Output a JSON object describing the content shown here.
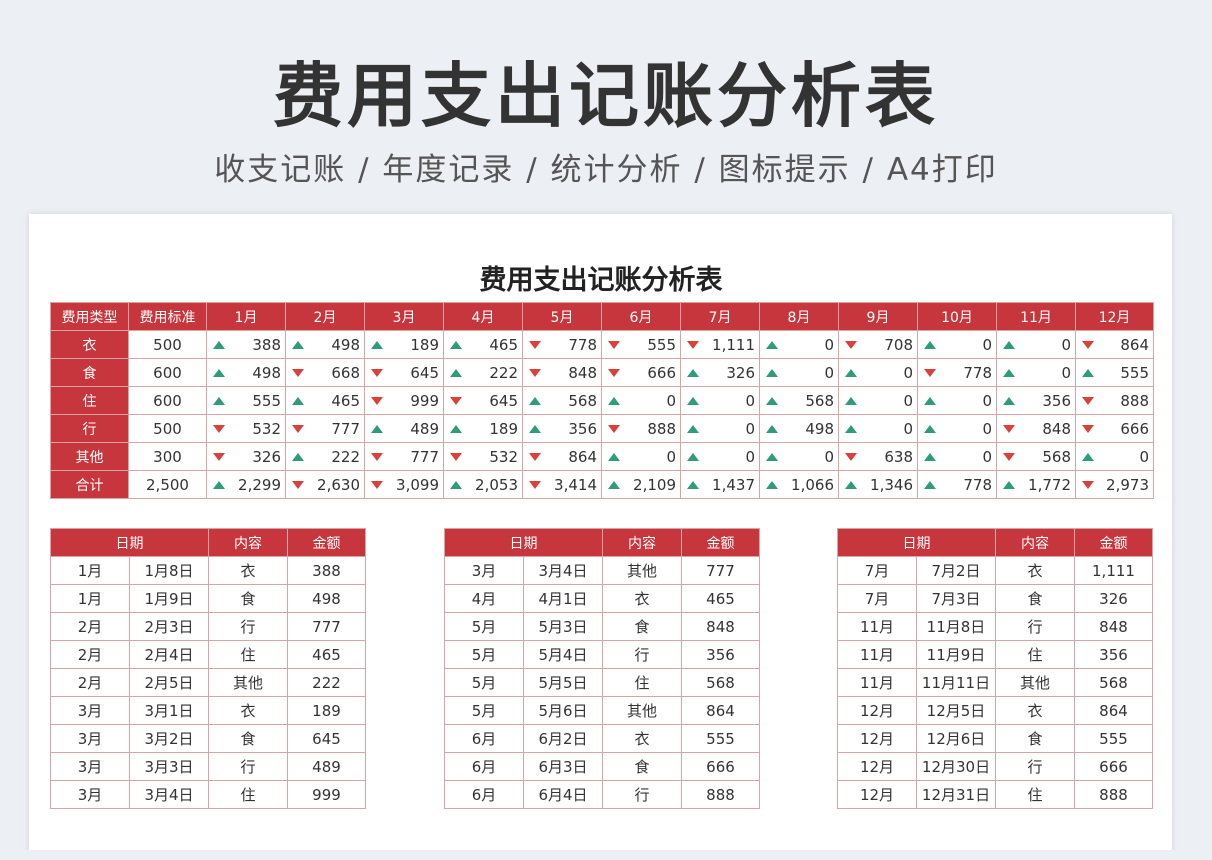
{
  "hero": {
    "title": "费用支出记账分析表",
    "subtitle": "收支记账 / 年度记录 / 统计分析 / 图标提示 / A4打印"
  },
  "sheet": {
    "title": "费用支出记账分析表",
    "summary": {
      "headers": [
        "费用类型",
        "费用标准",
        "1月",
        "2月",
        "3月",
        "4月",
        "5月",
        "6月",
        "7月",
        "8月",
        "9月",
        "10月",
        "11月",
        "12月"
      ],
      "rows": [
        {
          "type": "衣",
          "standard": "500",
          "values": [
            "388",
            "498",
            "189",
            "465",
            "778",
            "555",
            "1,111",
            "0",
            "708",
            "0",
            "0",
            "864"
          ],
          "dirs": [
            "up",
            "up",
            "up",
            "up",
            "down",
            "down",
            "down",
            "up",
            "down",
            "up",
            "up",
            "down"
          ]
        },
        {
          "type": "食",
          "standard": "600",
          "values": [
            "498",
            "668",
            "645",
            "222",
            "848",
            "666",
            "326",
            "0",
            "0",
            "778",
            "0",
            "555"
          ],
          "dirs": [
            "up",
            "down",
            "down",
            "up",
            "down",
            "down",
            "up",
            "up",
            "up",
            "down",
            "up",
            "up"
          ]
        },
        {
          "type": "住",
          "standard": "600",
          "values": [
            "555",
            "465",
            "999",
            "645",
            "568",
            "0",
            "0",
            "568",
            "0",
            "0",
            "356",
            "888"
          ],
          "dirs": [
            "up",
            "up",
            "down",
            "down",
            "up",
            "up",
            "up",
            "up",
            "up",
            "up",
            "up",
            "down"
          ]
        },
        {
          "type": "行",
          "standard": "500",
          "values": [
            "532",
            "777",
            "489",
            "189",
            "356",
            "888",
            "0",
            "498",
            "0",
            "0",
            "848",
            "666"
          ],
          "dirs": [
            "down",
            "down",
            "up",
            "up",
            "up",
            "down",
            "up",
            "up",
            "up",
            "up",
            "down",
            "down"
          ]
        },
        {
          "type": "其他",
          "standard": "300",
          "values": [
            "326",
            "222",
            "777",
            "532",
            "864",
            "0",
            "0",
            "0",
            "638",
            "0",
            "568",
            "0"
          ],
          "dirs": [
            "down",
            "up",
            "down",
            "down",
            "down",
            "up",
            "up",
            "up",
            "down",
            "up",
            "down",
            "up"
          ]
        },
        {
          "type": "合计",
          "standard": "2,500",
          "values": [
            "2,299",
            "2,630",
            "3,099",
            "2,053",
            "3,414",
            "2,109",
            "1,437",
            "1,066",
            "1,346",
            "778",
            "1,772",
            "2,973"
          ],
          "dirs": [
            "up",
            "down",
            "down",
            "up",
            "down",
            "up",
            "up",
            "up",
            "up",
            "up",
            "up",
            "down"
          ]
        }
      ]
    },
    "details": [
      {
        "headers": [
          "日期",
          "内容",
          "金额"
        ],
        "rows": [
          [
            "1月",
            "1月8日",
            "衣",
            "388"
          ],
          [
            "1月",
            "1月9日",
            "食",
            "498"
          ],
          [
            "2月",
            "2月3日",
            "行",
            "777"
          ],
          [
            "2月",
            "2月4日",
            "住",
            "465"
          ],
          [
            "2月",
            "2月5日",
            "其他",
            "222"
          ],
          [
            "3月",
            "3月1日",
            "衣",
            "189"
          ],
          [
            "3月",
            "3月2日",
            "食",
            "645"
          ],
          [
            "3月",
            "3月3日",
            "行",
            "489"
          ],
          [
            "3月",
            "3月4日",
            "住",
            "999"
          ]
        ]
      },
      {
        "headers": [
          "日期",
          "内容",
          "金额"
        ],
        "rows": [
          [
            "3月",
            "3月4日",
            "其他",
            "777"
          ],
          [
            "4月",
            "4月1日",
            "衣",
            "465"
          ],
          [
            "5月",
            "5月3日",
            "食",
            "848"
          ],
          [
            "5月",
            "5月4日",
            "行",
            "356"
          ],
          [
            "5月",
            "5月5日",
            "住",
            "568"
          ],
          [
            "5月",
            "5月6日",
            "其他",
            "864"
          ],
          [
            "6月",
            "6月2日",
            "衣",
            "555"
          ],
          [
            "6月",
            "6月3日",
            "食",
            "666"
          ],
          [
            "6月",
            "6月4日",
            "行",
            "888"
          ]
        ]
      },
      {
        "headers": [
          "日期",
          "内容",
          "金额"
        ],
        "rows": [
          [
            "7月",
            "7月2日",
            "衣",
            "1,111"
          ],
          [
            "7月",
            "7月3日",
            "食",
            "326"
          ],
          [
            "11月",
            "11月8日",
            "行",
            "848"
          ],
          [
            "11月",
            "11月9日",
            "住",
            "356"
          ],
          [
            "11月",
            "11月11日",
            "其他",
            "568"
          ],
          [
            "12月",
            "12月5日",
            "衣",
            "864"
          ],
          [
            "12月",
            "12月6日",
            "食",
            "555"
          ],
          [
            "12月",
            "12月30日",
            "行",
            "666"
          ],
          [
            "12月",
            "12月31日",
            "住",
            "888"
          ]
        ]
      }
    ]
  },
  "colors": {
    "header_red": "#c8363d",
    "up_green": "#2f9c79",
    "down_red": "#d9413a",
    "border": "#d9a4a6"
  }
}
